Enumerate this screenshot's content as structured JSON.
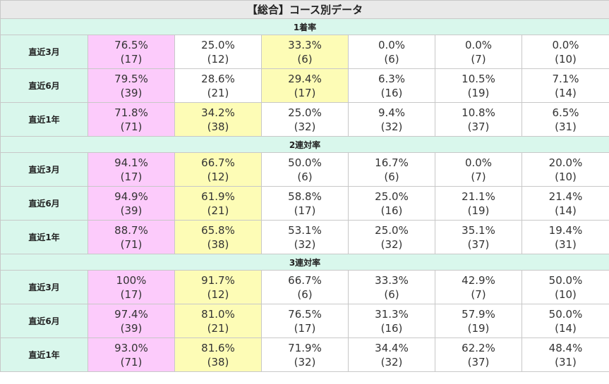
{
  "title": "【総合】コース別データ",
  "colors": {
    "rank1": "#fccbfb",
    "rank2": "#fdfcb6",
    "header": "#d9f7ec"
  },
  "sections": [
    {
      "label": "1着率",
      "rows": [
        {
          "label": "直近3月",
          "cells": [
            {
              "pct": "76.5%",
              "n": "(17)",
              "hl": 1
            },
            {
              "pct": "25.0%",
              "n": "(12)",
              "hl": 0
            },
            {
              "pct": "33.3%",
              "n": "(6)",
              "hl": 2
            },
            {
              "pct": "0.0%",
              "n": "(6)",
              "hl": 0
            },
            {
              "pct": "0.0%",
              "n": "(7)",
              "hl": 0
            },
            {
              "pct": "0.0%",
              "n": "(10)",
              "hl": 0
            }
          ]
        },
        {
          "label": "直近6月",
          "cells": [
            {
              "pct": "79.5%",
              "n": "(39)",
              "hl": 1
            },
            {
              "pct": "28.6%",
              "n": "(21)",
              "hl": 0
            },
            {
              "pct": "29.4%",
              "n": "(17)",
              "hl": 2
            },
            {
              "pct": "6.3%",
              "n": "(16)",
              "hl": 0
            },
            {
              "pct": "10.5%",
              "n": "(19)",
              "hl": 0
            },
            {
              "pct": "7.1%",
              "n": "(14)",
              "hl": 0
            }
          ]
        },
        {
          "label": "直近1年",
          "cells": [
            {
              "pct": "71.8%",
              "n": "(71)",
              "hl": 1
            },
            {
              "pct": "34.2%",
              "n": "(38)",
              "hl": 2
            },
            {
              "pct": "25.0%",
              "n": "(32)",
              "hl": 0
            },
            {
              "pct": "9.4%",
              "n": "(32)",
              "hl": 0
            },
            {
              "pct": "10.8%",
              "n": "(37)",
              "hl": 0
            },
            {
              "pct": "6.5%",
              "n": "(31)",
              "hl": 0
            }
          ]
        }
      ]
    },
    {
      "label": "2連対率",
      "rows": [
        {
          "label": "直近3月",
          "cells": [
            {
              "pct": "94.1%",
              "n": "(17)",
              "hl": 1
            },
            {
              "pct": "66.7%",
              "n": "(12)",
              "hl": 2
            },
            {
              "pct": "50.0%",
              "n": "(6)",
              "hl": 0
            },
            {
              "pct": "16.7%",
              "n": "(6)",
              "hl": 0
            },
            {
              "pct": "0.0%",
              "n": "(7)",
              "hl": 0
            },
            {
              "pct": "20.0%",
              "n": "(10)",
              "hl": 0
            }
          ]
        },
        {
          "label": "直近6月",
          "cells": [
            {
              "pct": "94.9%",
              "n": "(39)",
              "hl": 1
            },
            {
              "pct": "61.9%",
              "n": "(21)",
              "hl": 2
            },
            {
              "pct": "58.8%",
              "n": "(17)",
              "hl": 0
            },
            {
              "pct": "25.0%",
              "n": "(16)",
              "hl": 0
            },
            {
              "pct": "21.1%",
              "n": "(19)",
              "hl": 0
            },
            {
              "pct": "21.4%",
              "n": "(14)",
              "hl": 0
            }
          ]
        },
        {
          "label": "直近1年",
          "cells": [
            {
              "pct": "88.7%",
              "n": "(71)",
              "hl": 1
            },
            {
              "pct": "65.8%",
              "n": "(38)",
              "hl": 2
            },
            {
              "pct": "53.1%",
              "n": "(32)",
              "hl": 0
            },
            {
              "pct": "25.0%",
              "n": "(32)",
              "hl": 0
            },
            {
              "pct": "35.1%",
              "n": "(37)",
              "hl": 0
            },
            {
              "pct": "19.4%",
              "n": "(31)",
              "hl": 0
            }
          ]
        }
      ]
    },
    {
      "label": "3連対率",
      "rows": [
        {
          "label": "直近3月",
          "cells": [
            {
              "pct": "100%",
              "n": "(17)",
              "hl": 1
            },
            {
              "pct": "91.7%",
              "n": "(12)",
              "hl": 2
            },
            {
              "pct": "66.7%",
              "n": "(6)",
              "hl": 0
            },
            {
              "pct": "33.3%",
              "n": "(6)",
              "hl": 0
            },
            {
              "pct": "42.9%",
              "n": "(7)",
              "hl": 0
            },
            {
              "pct": "50.0%",
              "n": "(10)",
              "hl": 0
            }
          ]
        },
        {
          "label": "直近6月",
          "cells": [
            {
              "pct": "97.4%",
              "n": "(39)",
              "hl": 1
            },
            {
              "pct": "81.0%",
              "n": "(21)",
              "hl": 2
            },
            {
              "pct": "76.5%",
              "n": "(17)",
              "hl": 0
            },
            {
              "pct": "31.3%",
              "n": "(16)",
              "hl": 0
            },
            {
              "pct": "57.9%",
              "n": "(19)",
              "hl": 0
            },
            {
              "pct": "50.0%",
              "n": "(14)",
              "hl": 0
            }
          ]
        },
        {
          "label": "直近1年",
          "cells": [
            {
              "pct": "93.0%",
              "n": "(71)",
              "hl": 1
            },
            {
              "pct": "81.6%",
              "n": "(38)",
              "hl": 2
            },
            {
              "pct": "71.9%",
              "n": "(32)",
              "hl": 0
            },
            {
              "pct": "34.4%",
              "n": "(32)",
              "hl": 0
            },
            {
              "pct": "62.2%",
              "n": "(37)",
              "hl": 0
            },
            {
              "pct": "48.4%",
              "n": "(31)",
              "hl": 0
            }
          ]
        }
      ]
    }
  ]
}
